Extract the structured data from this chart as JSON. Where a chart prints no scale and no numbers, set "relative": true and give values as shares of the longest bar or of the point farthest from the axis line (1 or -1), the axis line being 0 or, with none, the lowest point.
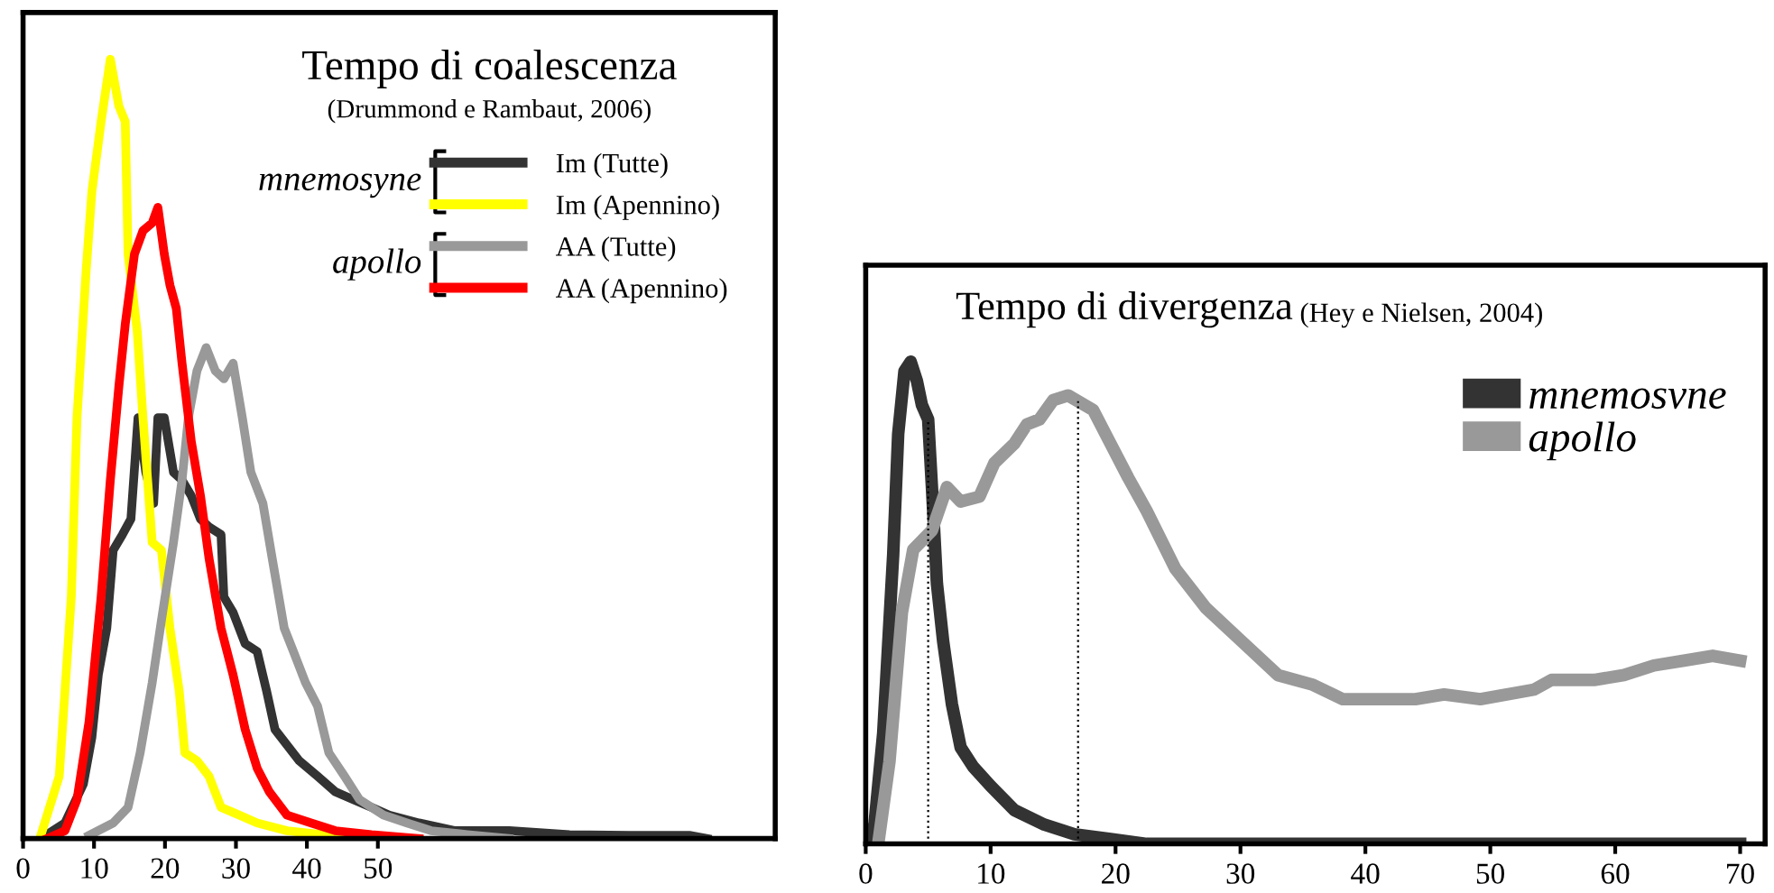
{
  "chart_data": [
    {
      "type": "line",
      "title": "Tempo di coalescenza",
      "subtitle": "(Drummond e Rambaut, 2006)",
      "relative": true,
      "xlim": [
        0,
        106
      ],
      "xticks": [
        0,
        10,
        20,
        30,
        40,
        50
      ],
      "legend": "top right",
      "annotations": [
        "mnemosyne",
        "apollo"
      ],
      "series": [
        {
          "name": "Im (Tutte)",
          "color": "#333333",
          "x": [
            2.5,
            5.9,
            8.5,
            9.7,
            10.6,
            11.8,
            12.7,
            14,
            15.2,
            16.2,
            17.3,
            18.4,
            19,
            19.9,
            21.2,
            22.4,
            23.7,
            25,
            26.2,
            27.9,
            28.3,
            29.6,
            31.3,
            33,
            34.3,
            35.5,
            37.2,
            38.9,
            41.5,
            44,
            46.5,
            49.1,
            51.6,
            55.8,
            60.9,
            68.5,
            77,
            85.4,
            93.9,
            96.4
          ],
          "values": [
            0,
            0.02,
            0.07,
            0.13,
            0.21,
            0.27,
            0.37,
            0.39,
            0.41,
            0.54,
            0.47,
            0.43,
            0.54,
            0.54,
            0.47,
            0.46,
            0.44,
            0.41,
            0.4,
            0.39,
            0.31,
            0.29,
            0.25,
            0.24,
            0.19,
            0.14,
            0.12,
            0.1,
            0.08,
            0.06,
            0.05,
            0.04,
            0.03,
            0.02,
            0.01,
            0.01,
            0.005,
            0.004,
            0.004,
            0
          ]
        },
        {
          "name": "Im (Apennino)",
          "color": "#ffff00",
          "x": [
            2.5,
            5.1,
            6.8,
            7.6,
            8.9,
            9.7,
            11,
            12.3,
            13.5,
            14.4,
            14.8,
            16.1,
            16.9,
            18.2,
            19.5,
            20.7,
            22,
            22.8,
            24.5,
            26.2,
            27.9,
            30.5,
            33,
            37.2,
            43.1,
            47.4
          ],
          "values": [
            0.004,
            0.08,
            0.31,
            0.54,
            0.73,
            0.83,
            0.92,
            1,
            0.94,
            0.92,
            0.75,
            0.65,
            0.54,
            0.38,
            0.37,
            0.27,
            0.19,
            0.11,
            0.1,
            0.08,
            0.04,
            0.03,
            0.02,
            0.01,
            0.004,
            0
          ]
        },
        {
          "name": "AA (Tutte)",
          "color": "#999999",
          "x": [
            9.3,
            12.7,
            14.8,
            16.5,
            18.2,
            19.5,
            21.2,
            22.4,
            23.3,
            24.5,
            25.8,
            27.1,
            28.3,
            29.6,
            30.9,
            32.1,
            33.8,
            35.1,
            36.8,
            38.1,
            39.8,
            41.5,
            43.1,
            45.3,
            47.4,
            50.8,
            54.1,
            57.5,
            62.6,
            68.5
          ],
          "values": [
            0.004,
            0.02,
            0.04,
            0.11,
            0.2,
            0.28,
            0.38,
            0.46,
            0.54,
            0.6,
            0.63,
            0.6,
            0.59,
            0.61,
            0.54,
            0.47,
            0.43,
            0.36,
            0.27,
            0.24,
            0.2,
            0.17,
            0.11,
            0.08,
            0.05,
            0.03,
            0.02,
            0.01,
            0.005,
            0
          ]
        },
        {
          "name": "AA (Apennino)",
          "color": "#ff0000",
          "x": [
            3.4,
            5.9,
            7.6,
            9.3,
            11,
            12.3,
            13.5,
            14.4,
            15.7,
            16.9,
            18.2,
            19,
            19.9,
            20.7,
            21.6,
            22.4,
            23.7,
            25,
            26.2,
            27.9,
            29.6,
            31.3,
            33,
            34.7,
            37.2,
            40.6,
            44,
            49.1,
            55.8
          ],
          "values": [
            0,
            0.01,
            0.05,
            0.15,
            0.31,
            0.46,
            0.58,
            0.66,
            0.75,
            0.78,
            0.79,
            0.81,
            0.75,
            0.71,
            0.68,
            0.61,
            0.51,
            0.44,
            0.36,
            0.27,
            0.21,
            0.14,
            0.09,
            0.06,
            0.03,
            0.02,
            0.01,
            0.005,
            0
          ]
        }
      ]
    },
    {
      "type": "line",
      "title": "Tempo di divergenza",
      "subtitle": "(Hey e Nielsen, 2004)",
      "relative": true,
      "xlim": [
        0,
        72
      ],
      "xticks": [
        0,
        10,
        20,
        30,
        40,
        50,
        60,
        70
      ],
      "legend": "top right",
      "ref_lines": [
        {
          "axis": "x",
          "value": 5,
          "line_style": "dotted",
          "color": "#000000"
        },
        {
          "axis": "x",
          "value": 17,
          "line_style": "dotted",
          "color": "#000000"
        }
      ],
      "series": [
        {
          "name": "mnemosvne",
          "color": "#333333",
          "x": [
            0,
            0.7,
            1.4,
            2.2,
            2.6,
            3.1,
            3.6,
            4.1,
            4.5,
            5,
            5.3,
            5.7,
            6.2,
            6.9,
            7.6,
            8.6,
            10,
            11.9,
            14.3,
            16.7,
            19.6,
            22.5,
            70
          ],
          "values": [
            0,
            0.04,
            0.23,
            0.6,
            0.85,
            0.98,
            1,
            0.96,
            0.91,
            0.88,
            0.74,
            0.54,
            0.42,
            0.29,
            0.2,
            0.16,
            0.12,
            0.07,
            0.04,
            0.02,
            0.01,
            0,
            0
          ]
        },
        {
          "name": "apollo",
          "color": "#999999",
          "x": [
            1,
            1.9,
            2.9,
            3.8,
            5.3,
            6.5,
            7.6,
            9.1,
            10.3,
            11.9,
            12.9,
            13.9,
            15,
            16.2,
            18.2,
            19.6,
            21,
            22.5,
            24.8,
            27.2,
            30.1,
            33,
            35.8,
            38.2,
            41.6,
            44,
            46.3,
            49.2,
            53.5,
            54.9,
            58.3,
            60.7,
            63.1,
            65.5,
            67.8,
            70
          ],
          "values": [
            0,
            0.17,
            0.48,
            0.61,
            0.65,
            0.74,
            0.71,
            0.72,
            0.79,
            0.83,
            0.87,
            0.88,
            0.92,
            0.93,
            0.9,
            0.83,
            0.76,
            0.69,
            0.57,
            0.49,
            0.42,
            0.35,
            0.33,
            0.3,
            0.3,
            0.3,
            0.31,
            0.3,
            0.32,
            0.34,
            0.34,
            0.35,
            0.37,
            0.38,
            0.39,
            0.38
          ]
        }
      ]
    }
  ]
}
